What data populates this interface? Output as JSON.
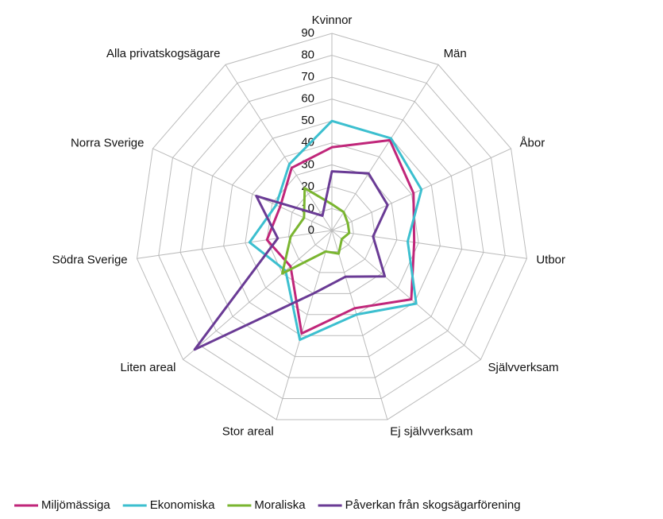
{
  "chart_data": {
    "type": "radar",
    "categories": [
      "Kvinnor",
      "Män",
      "Åbor",
      "Utbor",
      "Självverksam",
      "Ej självverksam",
      "Stor areal",
      "Liten areal",
      "Södra Sverige",
      "Norra Sverige",
      "Alla privatskogsägare"
    ],
    "series": [
      {
        "name": "Miljömässiga",
        "color": "#c0267a",
        "values": [
          38,
          49,
          41,
          38,
          48,
          37,
          49,
          25,
          30,
          26,
          34
        ]
      },
      {
        "name": "Ekonomiska",
        "color": "#3cbfcf",
        "values": [
          50,
          50,
          45,
          35,
          51,
          40,
          52,
          28,
          38,
          28,
          36
        ]
      },
      {
        "name": "Moraliska",
        "color": "#7ab530",
        "values": [
          12,
          10,
          8,
          8,
          6,
          11,
          10,
          30,
          19,
          14,
          23
        ]
      },
      {
        "name": "Påverkan från skogsägarförening",
        "color": "#6a3b95",
        "values": [
          27,
          31,
          28,
          19,
          32,
          22,
          30,
          83,
          25,
          38,
          8
        ]
      }
    ],
    "ylim": [
      0,
      90
    ],
    "yticks": [
      0,
      10,
      20,
      30,
      40,
      50,
      60,
      70,
      80,
      90
    ],
    "grid": true
  }
}
